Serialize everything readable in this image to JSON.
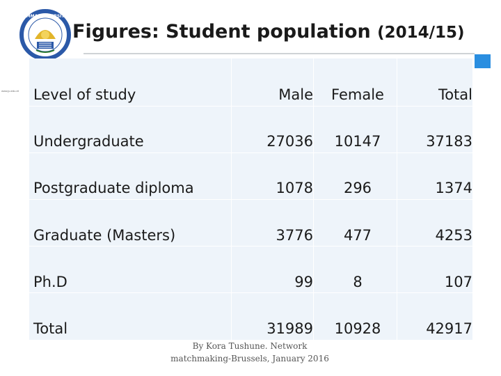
{
  "logo": {
    "name": "JIMMA UNIVERSITY",
    "caption": "www.ju.edu.et"
  },
  "title": {
    "main": "Figures: Student population ",
    "year": "(2014/15)"
  },
  "table": {
    "headers": [
      "Level of study",
      "Male",
      "Female",
      "Total"
    ],
    "rows": [
      [
        "Undergraduate",
        "27036",
        "10147",
        "37183"
      ],
      [
        "Postgraduate diploma",
        "1078",
        "296",
        "1374"
      ],
      [
        "Graduate (Masters)",
        "3776",
        "477",
        "4253"
      ],
      [
        "Ph.D",
        "99",
        "8",
        "107"
      ],
      [
        "Total",
        "31989",
        "10928",
        "42917"
      ]
    ]
  },
  "footer": "By Kora Tushune. Network matchmaking-Brussels, January 2016",
  "colors": {
    "accent": "#2a8ee0",
    "table_bg": "#eef4fa",
    "logo_blue": "#2b59a8",
    "logo_gold": "#e2b52a"
  }
}
